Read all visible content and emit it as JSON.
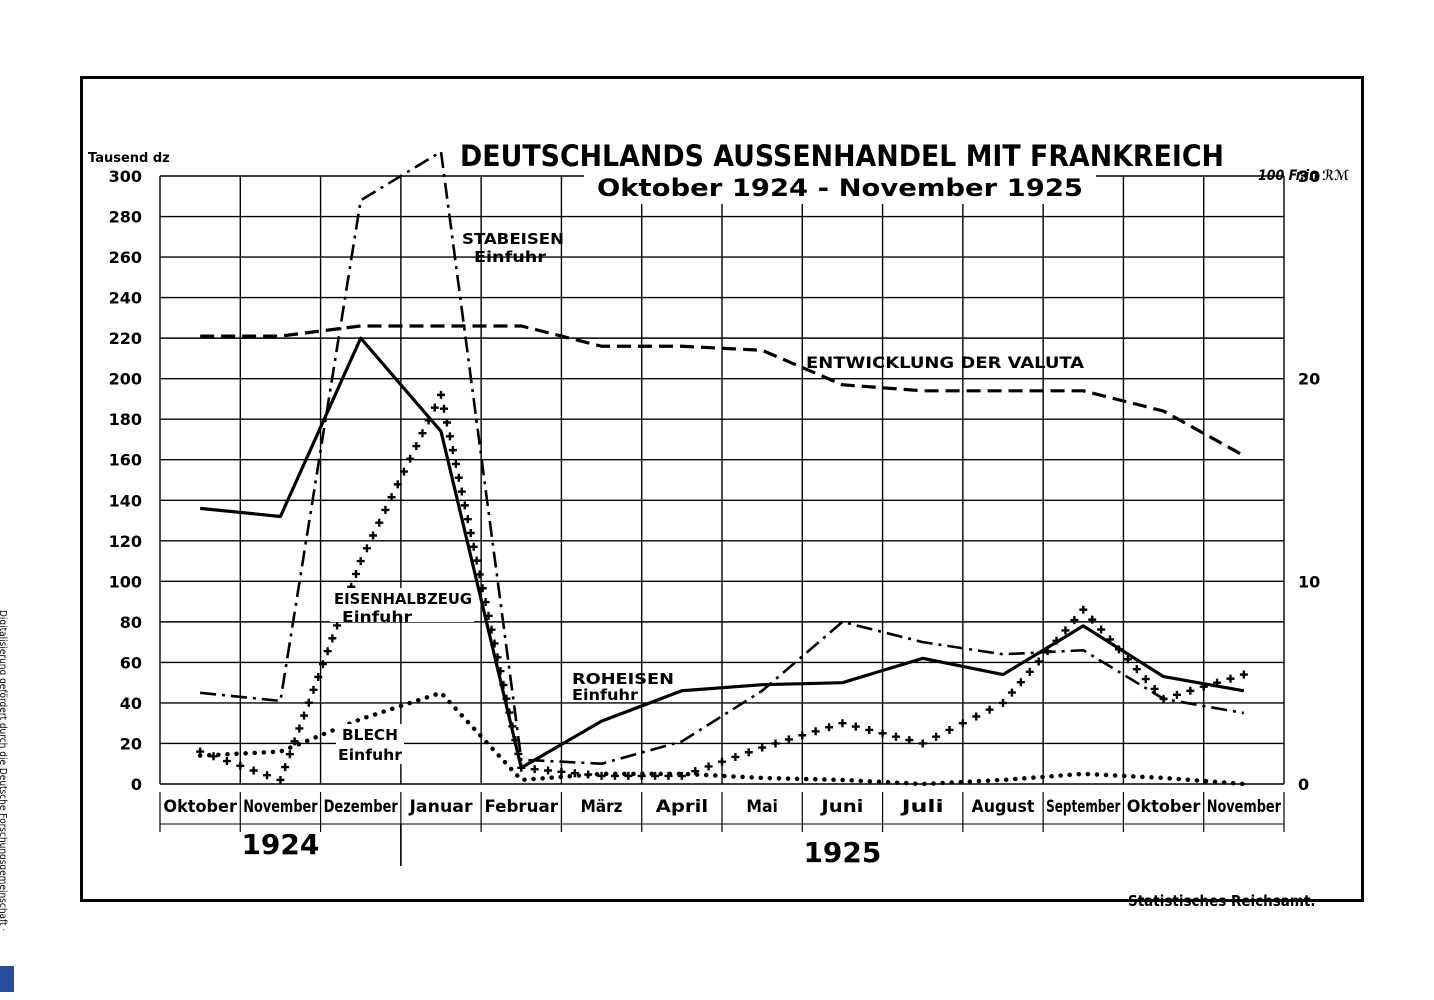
{
  "chart_data": {
    "type": "line",
    "title": "DEUTSCHLANDS AUSSENHANDEL MIT FRANKREICH",
    "subtitle": "Oktober 1924 - November 1925",
    "ylabel_left": "Tausend dz",
    "ylabel_right": "100 Fr.in ℛℳ",
    "categories": [
      "Oktober",
      "November",
      "Dezember",
      "Januar",
      "Februar",
      "März",
      "April",
      "Mai",
      "Juni",
      "Juli",
      "August",
      "September",
      "Oktober",
      "November"
    ],
    "year_labels": [
      "1924",
      "1925"
    ],
    "y_left": {
      "min": 0,
      "max": 300,
      "ticks": [
        0,
        20,
        40,
        60,
        80,
        100,
        120,
        140,
        160,
        180,
        200,
        220,
        240,
        260,
        280,
        300
      ]
    },
    "y_right": {
      "min": 0,
      "max": 30,
      "ticks": [
        0,
        10,
        20,
        30
      ]
    },
    "grid": true,
    "series": [
      {
        "name": "STABEISEN Einfuhr",
        "axis": "left",
        "style": "dashdot",
        "values": [
          45,
          41,
          288,
          312,
          12,
          10,
          21,
          46,
          80,
          70,
          64,
          66,
          42,
          35
        ]
      },
      {
        "name": "EISENHALBZEUG Einfuhr",
        "axis": "left",
        "style": "cross",
        "values": [
          16,
          2,
          110,
          192,
          8,
          4,
          4,
          18,
          30,
          20,
          40,
          86,
          42,
          54
        ]
      },
      {
        "name": "ROHEISEN Einfuhr",
        "axis": "left",
        "style": "solid",
        "values": [
          136,
          132,
          220,
          174,
          8,
          31,
          46,
          49,
          50,
          62,
          54,
          78,
          53,
          46
        ]
      },
      {
        "name": "BLECH Einfuhr",
        "axis": "left",
        "style": "dotted",
        "values": [
          14,
          16,
          32,
          45,
          2,
          5,
          5,
          3,
          2,
          0,
          2,
          5,
          3,
          0
        ]
      },
      {
        "name": "ENTWICKLUNG DER VALUTA",
        "axis": "right",
        "style": "dashed",
        "values": [
          22.1,
          22.1,
          22.6,
          22.6,
          22.6,
          21.6,
          21.6,
          21.4,
          19.7,
          19.4,
          19.4,
          19.4,
          18.4,
          16.2
        ]
      }
    ],
    "source": "Statistisches Reichsamt."
  },
  "side_note": "Digitalisierung gefördert durch die Deutsche Forschungsgemeinschaft ·"
}
